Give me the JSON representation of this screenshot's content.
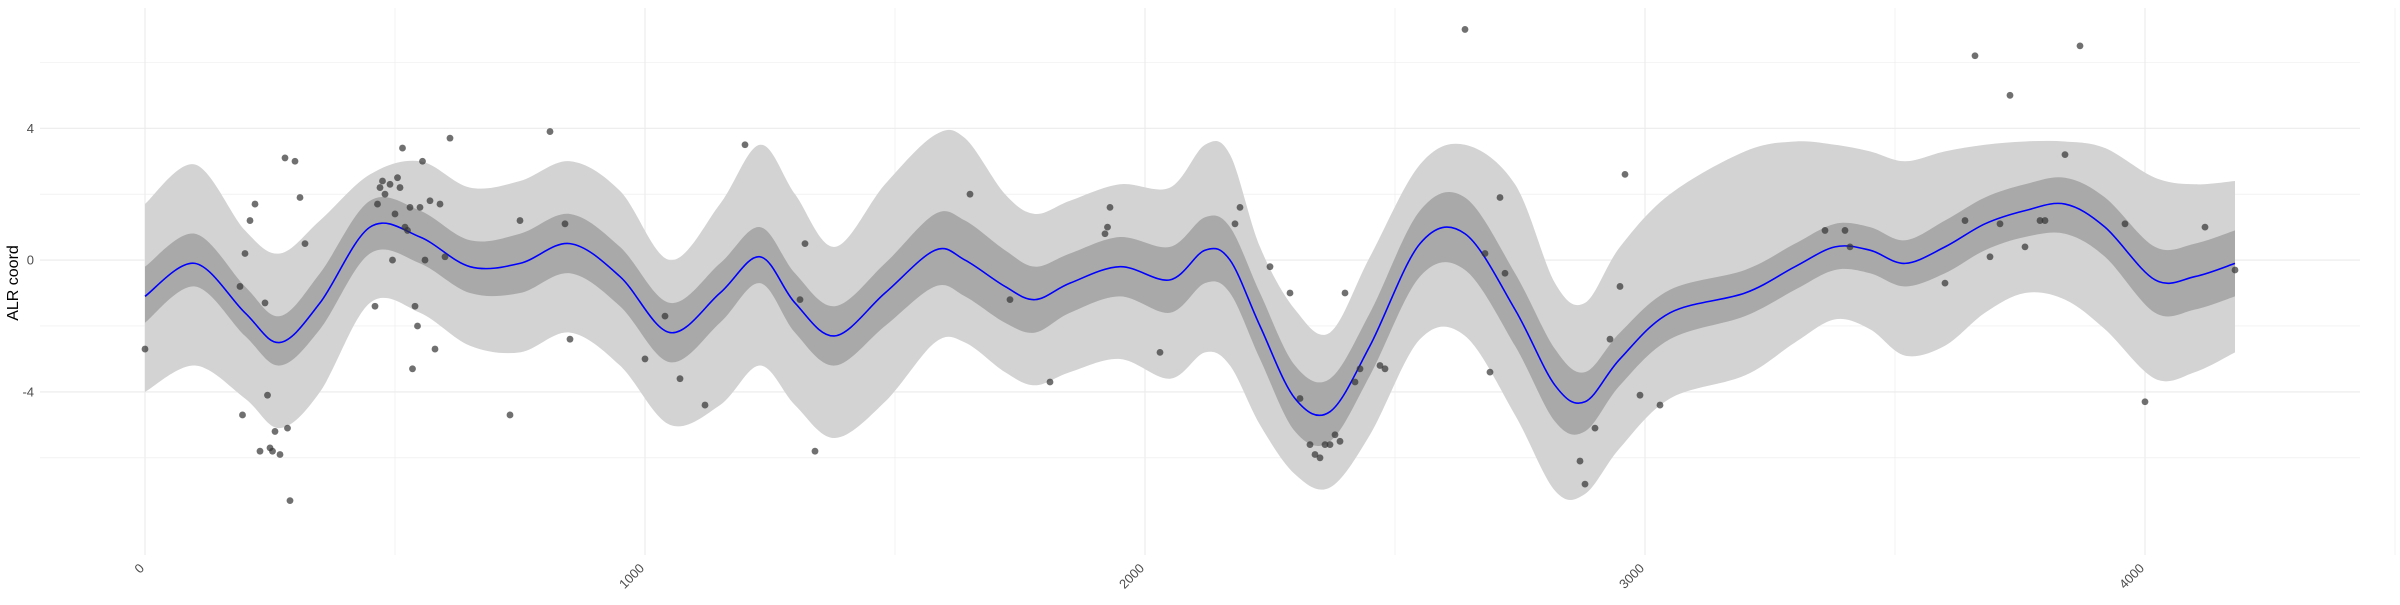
{
  "chart_data": {
    "type": "line",
    "title": "",
    "xlabel": "",
    "ylabel": "ALR coord",
    "xlim": [
      -210,
      4430
    ],
    "ylim": [
      -8.95,
      7.65
    ],
    "x_ticks": [
      0,
      1000,
      2000,
      3000,
      4000
    ],
    "x_tick_labels": [
      "0",
      "1000",
      "2000",
      "3000",
      "4000"
    ],
    "y_ticks": [
      -4,
      0,
      4
    ],
    "y_tick_labels": [
      "-4",
      "0",
      "4"
    ],
    "grid": true,
    "legend": "none",
    "colors": {
      "fit_line": "#0000ff",
      "inner_band": "#a9a9a9",
      "outer_band": "#d3d3d3",
      "points": "#333333",
      "grid": "#ebebeb",
      "background": "#ffffff"
    },
    "series": [
      {
        "kind": "fitted_mean",
        "x": [
          0,
          100,
          200,
          270,
          350,
          450,
          550,
          650,
          750,
          850,
          950,
          1050,
          1150,
          1230,
          1300,
          1380,
          1480,
          1580,
          1640,
          1720,
          1780,
          1850,
          1950,
          2050,
          2120,
          2170,
          2230,
          2300,
          2370,
          2450,
          2550,
          2640,
          2740,
          2820,
          2880,
          2950,
          3050,
          3200,
          3300,
          3380,
          3450,
          3520,
          3600,
          3680,
          3760,
          3840,
          3920,
          4020,
          4100,
          4180
        ],
        "y": [
          -1.1,
          -0.1,
          -1.6,
          -2.5,
          -1.3,
          1.0,
          0.7,
          -0.2,
          -0.1,
          0.5,
          -0.5,
          -2.2,
          -1.0,
          0.1,
          -1.3,
          -2.3,
          -1.0,
          0.3,
          0.0,
          -0.8,
          -1.2,
          -0.7,
          -0.2,
          -0.6,
          0.3,
          0.0,
          -2.0,
          -4.2,
          -4.6,
          -2.6,
          0.5,
          0.8,
          -1.5,
          -3.8,
          -4.3,
          -3.0,
          -1.6,
          -1.0,
          -0.2,
          0.4,
          0.3,
          -0.1,
          0.4,
          1.1,
          1.5,
          1.7,
          1.0,
          -0.6,
          -0.5,
          -0.1
        ]
      },
      {
        "kind": "inner_interval",
        "x": [
          0,
          100,
          200,
          270,
          350,
          450,
          550,
          650,
          750,
          850,
          950,
          1050,
          1150,
          1230,
          1300,
          1380,
          1480,
          1580,
          1640,
          1720,
          1780,
          1850,
          1950,
          2050,
          2120,
          2170,
          2230,
          2300,
          2370,
          2450,
          2550,
          2640,
          2740,
          2820,
          2880,
          2950,
          3050,
          3200,
          3300,
          3380,
          3450,
          3520,
          3600,
          3680,
          3760,
          3840,
          3920,
          4020,
          4100,
          4180
        ],
        "y_low": [
          -1.9,
          -0.8,
          -2.3,
          -3.2,
          -2.1,
          0.2,
          -0.1,
          -1.0,
          -1.0,
          -0.4,
          -1.4,
          -3.1,
          -1.9,
          -0.7,
          -2.2,
          -3.2,
          -2.0,
          -0.8,
          -1.1,
          -1.9,
          -2.2,
          -1.6,
          -1.1,
          -1.6,
          -0.7,
          -1.0,
          -3.0,
          -5.2,
          -5.5,
          -3.5,
          -0.5,
          -0.3,
          -2.6,
          -4.9,
          -5.2,
          -3.8,
          -2.4,
          -1.7,
          -0.9,
          -0.3,
          -0.4,
          -0.8,
          -0.4,
          0.3,
          0.7,
          0.8,
          0.1,
          -1.6,
          -1.5,
          -1.1
        ],
        "y_high": [
          -0.2,
          0.8,
          -0.8,
          -1.7,
          -0.4,
          1.8,
          1.5,
          0.6,
          0.8,
          1.4,
          0.4,
          -1.3,
          -0.1,
          1.0,
          -0.4,
          -1.4,
          -0.1,
          1.4,
          1.2,
          0.3,
          -0.2,
          0.2,
          0.7,
          0.4,
          1.3,
          1.0,
          -1.0,
          -3.2,
          -3.6,
          -1.6,
          1.5,
          1.9,
          -0.4,
          -2.7,
          -3.4,
          -2.2,
          -0.9,
          -0.3,
          0.5,
          1.1,
          1.0,
          0.6,
          1.2,
          1.9,
          2.3,
          2.5,
          1.9,
          0.4,
          0.5,
          0.9
        ]
      },
      {
        "kind": "outer_interval",
        "x": [
          0,
          100,
          200,
          270,
          350,
          450,
          550,
          650,
          750,
          850,
          950,
          1050,
          1150,
          1230,
          1300,
          1380,
          1480,
          1580,
          1640,
          1720,
          1780,
          1850,
          1950,
          2050,
          2120,
          2170,
          2230,
          2300,
          2370,
          2450,
          2550,
          2640,
          2740,
          2820,
          2880,
          2950,
          3050,
          3200,
          3300,
          3380,
          3450,
          3520,
          3600,
          3680,
          3760,
          3840,
          3920,
          4020,
          4100,
          4180
        ],
        "y_low": [
          -4.0,
          -3.2,
          -4.2,
          -5.1,
          -4.0,
          -1.3,
          -1.6,
          -2.6,
          -2.8,
          -2.2,
          -3.2,
          -5.0,
          -4.4,
          -3.2,
          -4.4,
          -5.4,
          -4.3,
          -2.5,
          -2.5,
          -3.4,
          -3.8,
          -3.4,
          -3.0,
          -3.6,
          -2.8,
          -3.2,
          -5.0,
          -6.5,
          -6.9,
          -5.3,
          -2.4,
          -2.3,
          -4.7,
          -7.0,
          -7.1,
          -5.7,
          -4.2,
          -3.5,
          -2.5,
          -1.8,
          -2.1,
          -2.9,
          -2.6,
          -1.6,
          -1.0,
          -1.2,
          -2.1,
          -3.6,
          -3.4,
          -2.8
        ],
        "y_high": [
          1.7,
          2.9,
          0.9,
          0.2,
          1.2,
          2.6,
          3.0,
          2.2,
          2.4,
          3.0,
          2.1,
          0.0,
          1.7,
          3.5,
          2.0,
          0.4,
          2.3,
          3.8,
          3.7,
          2.0,
          1.4,
          1.8,
          2.3,
          2.2,
          3.5,
          3.2,
          0.4,
          -1.5,
          -2.2,
          0.1,
          2.9,
          3.5,
          2.3,
          -0.7,
          -1.3,
          0.4,
          2.0,
          3.3,
          3.6,
          3.5,
          3.3,
          3.0,
          3.3,
          3.5,
          3.6,
          3.6,
          3.4,
          2.5,
          2.3,
          2.4
        ]
      },
      {
        "kind": "observations",
        "x": [
          0,
          190,
          195,
          200,
          210,
          220,
          230,
          240,
          245,
          250,
          255,
          260,
          270,
          280,
          285,
          290,
          300,
          310,
          320,
          460,
          465,
          470,
          475,
          480,
          490,
          495,
          500,
          505,
          510,
          515,
          520,
          525,
          530,
          535,
          540,
          545,
          550,
          555,
          560,
          570,
          580,
          590,
          600,
          610,
          730,
          750,
          810,
          840,
          850,
          1000,
          1040,
          1070,
          1120,
          1200,
          1310,
          1320,
          1340,
          1650,
          1730,
          1810,
          1920,
          1925,
          1930,
          2030,
          2180,
          2190,
          2250,
          2290,
          2310,
          2330,
          2340,
          2350,
          2360,
          2370,
          2380,
          2390,
          2400,
          2420,
          2430,
          2470,
          2480,
          2640,
          2680,
          2690,
          2710,
          2720,
          2870,
          2880,
          2900,
          2930,
          2950,
          2960,
          2990,
          3030,
          3360,
          3400,
          3410,
          3600,
          3640,
          3660,
          3690,
          3710,
          3730,
          3760,
          3790,
          3800,
          3840,
          3870,
          3960,
          4000,
          4120,
          4180
        ],
        "y": [
          -2.7,
          -0.8,
          -4.7,
          0.2,
          1.2,
          1.7,
          -5.8,
          -1.3,
          -4.1,
          -5.7,
          -5.8,
          -5.2,
          -5.9,
          3.1,
          -5.1,
          -7.3,
          3.0,
          1.9,
          0.5,
          -1.4,
          1.7,
          2.2,
          2.4,
          2.0,
          2.3,
          0.0,
          1.4,
          2.5,
          2.2,
          3.4,
          1.0,
          0.9,
          1.6,
          -3.3,
          -1.4,
          -2.0,
          1.6,
          3.0,
          0.0,
          1.8,
          -2.7,
          1.7,
          0.1,
          3.7,
          -4.7,
          1.2,
          3.9,
          1.1,
          -2.4,
          -3.0,
          -1.7,
          -3.6,
          -4.4,
          3.5,
          -1.2,
          0.5,
          -5.8,
          2.0,
          -1.2,
          -3.7,
          0.8,
          1.0,
          1.6,
          -2.8,
          1.1,
          1.6,
          -0.2,
          -1.0,
          -4.2,
          -5.6,
          -5.9,
          -6.0,
          -5.6,
          -5.6,
          -5.3,
          -5.5,
          -1.0,
          -3.7,
          -3.3,
          -3.2,
          -3.3,
          7.0,
          0.2,
          -3.4,
          1.9,
          -0.4,
          -6.1,
          -6.8,
          -5.1,
          -2.4,
          -0.8,
          2.6,
          -4.1,
          -4.4,
          0.9,
          0.9,
          0.4,
          -0.7,
          1.2,
          6.2,
          0.1,
          1.1,
          5.0,
          0.4,
          1.2,
          1.2,
          3.2,
          6.5,
          1.1,
          -4.3,
          1.0,
          -0.3
        ]
      }
    ]
  }
}
